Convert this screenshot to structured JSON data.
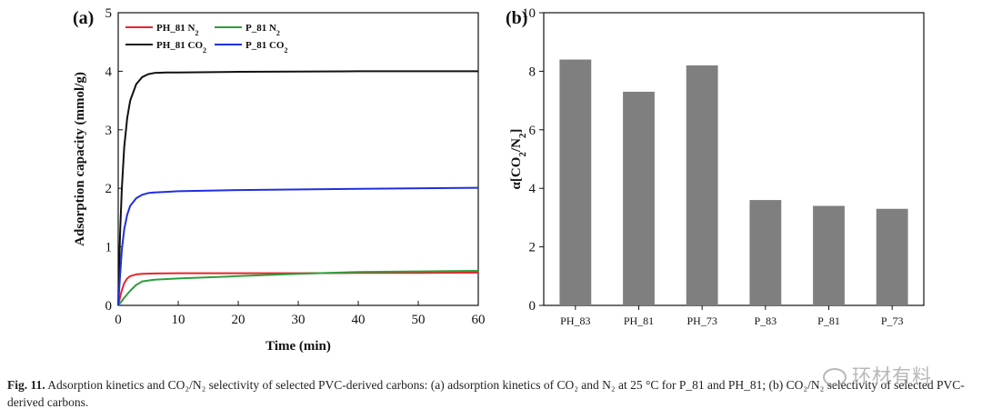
{
  "chart_data": [
    {
      "panel": "(a)",
      "type": "line",
      "xlabel": "Time (min)",
      "ylabel": "Adsorption capacity (mmol/g)",
      "xlim": [
        0,
        60
      ],
      "ylim": [
        0,
        5
      ],
      "xticks": [
        0,
        10,
        20,
        30,
        40,
        50,
        60
      ],
      "yticks": [
        0,
        1,
        2,
        3,
        4,
        5
      ],
      "legend": [
        "PH_81 N2",
        "P_81 N2",
        "PH_81 CO2",
        "P_81 CO2"
      ],
      "series": [
        {
          "name": "PH_81 N2",
          "color": "#e8242a",
          "x": [
            0,
            0.5,
            1,
            1.5,
            2,
            3,
            4,
            6,
            10,
            20,
            30,
            40,
            50,
            60
          ],
          "y": [
            0,
            0.22,
            0.38,
            0.46,
            0.5,
            0.53,
            0.54,
            0.545,
            0.55,
            0.55,
            0.55,
            0.555,
            0.555,
            0.56
          ]
        },
        {
          "name": "P_81 N2",
          "color": "#2e9e3c",
          "x": [
            0,
            0.5,
            1,
            2,
            3,
            4,
            6,
            10,
            20,
            30,
            40,
            50,
            60
          ],
          "y": [
            0,
            0.06,
            0.13,
            0.25,
            0.35,
            0.41,
            0.44,
            0.46,
            0.5,
            0.54,
            0.57,
            0.58,
            0.59
          ]
        },
        {
          "name": "PH_81 CO2",
          "color": "#111111",
          "x": [
            0,
            0.3,
            0.6,
            1,
            1.5,
            2,
            3,
            4,
            5,
            6,
            8,
            10,
            20,
            40,
            60
          ],
          "y": [
            0,
            1.2,
            2.0,
            2.7,
            3.2,
            3.5,
            3.78,
            3.9,
            3.95,
            3.97,
            3.98,
            3.98,
            3.99,
            4.0,
            4.0
          ]
        },
        {
          "name": "P_81 CO2",
          "color": "#1f2fe0",
          "x": [
            0,
            0.3,
            0.6,
            1,
            1.5,
            2,
            3,
            4,
            5,
            6,
            8,
            10,
            20,
            40,
            60
          ],
          "y": [
            0,
            0.5,
            0.95,
            1.3,
            1.55,
            1.7,
            1.83,
            1.89,
            1.92,
            1.93,
            1.94,
            1.95,
            1.97,
            1.99,
            2.01
          ]
        }
      ]
    },
    {
      "panel": "(b)",
      "type": "bar",
      "ylabel": "α[CO2/N2]",
      "ylim": [
        0,
        10
      ],
      "yticks": [
        0,
        2,
        4,
        6,
        8,
        10
      ],
      "categories": [
        "PH_83",
        "PH_81",
        "PH_73",
        "P_83",
        "P_81",
        "P_73"
      ],
      "values": [
        8.4,
        7.3,
        8.2,
        3.6,
        3.4,
        3.3
      ],
      "bar_color": "#7f7f7f"
    }
  ],
  "caption": {
    "label": "Fig. 11.",
    "text": "Adsorption kinetics and CO₂/N₂ selectivity of selected PVC-derived carbons: (a) adsorption kinetics of CO₂ and N₂ at 25 °C for P_81 and PH_81; (b) CO₂/N₂ selectivity of selected PVC-derived carbons."
  },
  "watermark": "环材有料"
}
